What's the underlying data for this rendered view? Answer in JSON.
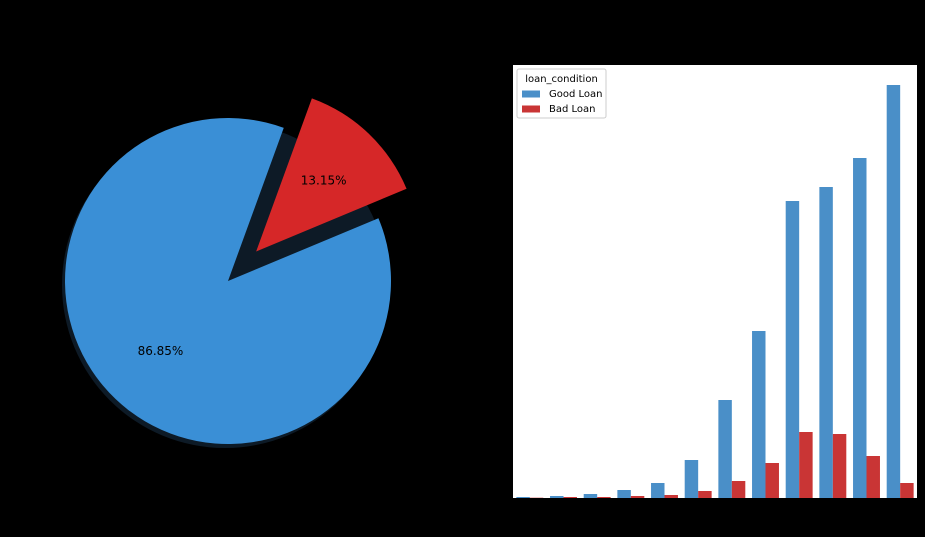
{
  "chart_data": [
    {
      "type": "pie",
      "values": [
        86.85,
        13.15
      ],
      "value_labels": [
        "86.85%",
        "13.15%"
      ],
      "colors": [
        "#3a8fd6",
        "#d62728"
      ]
    },
    {
      "type": "bar",
      "categories": [
        null,
        null,
        null,
        null,
        null,
        null,
        null,
        null,
        null,
        null,
        null,
        null
      ],
      "legend_title": "loan_condition",
      "legend": "upper left",
      "series": [
        {
          "name": "Good Loan",
          "color": "#4a8fc8",
          "values": [
            1,
            2,
            4,
            8,
            15,
            38,
            98,
            167,
            297,
            311,
            340,
            413
          ]
        },
        {
          "name": "Bad Loan",
          "color": "#c93535",
          "values": [
            0.3,
            1,
            1,
            2,
            3,
            7,
            17,
            35,
            66,
            64,
            42,
            15
          ]
        }
      ],
      "ylim": [
        0,
        433
      ]
    }
  ]
}
